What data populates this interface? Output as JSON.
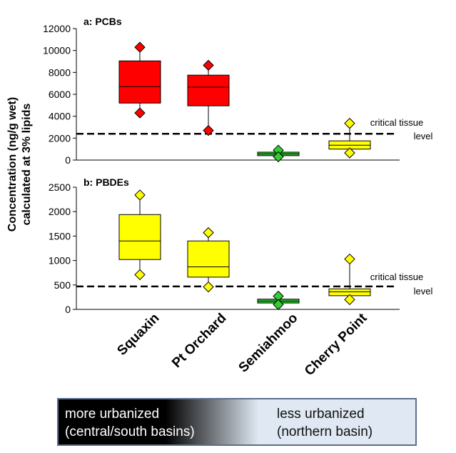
{
  "chart_data": {
    "type": "boxplot",
    "ylabel_line1": "Concentration (ng/g wet)",
    "ylabel_line2": "calculated at 3% lipids",
    "categories": [
      "Squaxin",
      "Pt Orchard",
      "Semiahmoo",
      "Cherry Point"
    ],
    "threshold_label_line1": "critical tissue",
    "threshold_label_line2": "level",
    "panels": [
      {
        "title": "a: PCBs",
        "ylim": [
          0,
          12000
        ],
        "ticks": [
          0,
          2000,
          4000,
          6000,
          8000,
          10000,
          12000
        ],
        "threshold": 2400,
        "boxes": [
          {
            "category": "Squaxin",
            "min": 4300,
            "q1": 5200,
            "median": 6700,
            "q3": 9050,
            "max": 10300,
            "color": "#ff0000"
          },
          {
            "category": "Pt Orchard",
            "min": 2700,
            "q1": 4950,
            "median": 6650,
            "q3": 7750,
            "max": 8650,
            "color": "#ff0000"
          },
          {
            "category": "Semiahmoo",
            "min": 300,
            "q1": 400,
            "median": 560,
            "q3": 720,
            "max": 900,
            "color": "#33cc33"
          },
          {
            "category": "Cherry Point",
            "min": 650,
            "q1": 1000,
            "median": 1350,
            "q3": 1750,
            "max": 3350,
            "color": "#ffff00"
          }
        ]
      },
      {
        "title": "b: PBDEs",
        "ylim": [
          0,
          2500
        ],
        "ticks": [
          0,
          500,
          1000,
          1500,
          2000,
          2500
        ],
        "threshold": 470,
        "boxes": [
          {
            "category": "Squaxin",
            "min": 710,
            "q1": 1020,
            "median": 1400,
            "q3": 1940,
            "max": 2340,
            "color": "#ffff00"
          },
          {
            "category": "Pt Orchard",
            "min": 460,
            "q1": 660,
            "median": 870,
            "q3": 1400,
            "max": 1570,
            "color": "#ffff00"
          },
          {
            "category": "Semiahmoo",
            "min": 100,
            "q1": 130,
            "median": 170,
            "q3": 210,
            "max": 270,
            "color": "#33cc33"
          },
          {
            "category": "Cherry Point",
            "min": 200,
            "q1": 280,
            "median": 360,
            "q3": 420,
            "max": 1030,
            "color": "#ffff00"
          }
        ]
      }
    ]
  },
  "legend_bar": {
    "left_line1": "more urbanized",
    "left_line2": "(central/south basins)",
    "right_line1": "less urbanized",
    "right_line2": "(northern basin)"
  }
}
